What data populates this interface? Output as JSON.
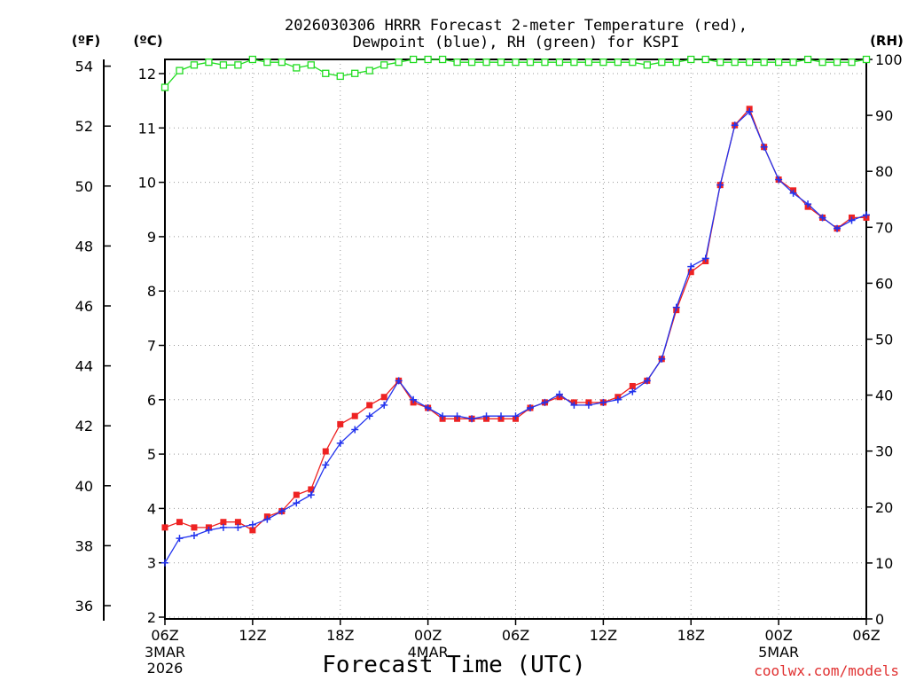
{
  "chart_data": {
    "type": "line",
    "title_line1": "2026030306 HRRR Forecast 2-meter Temperature (red),",
    "title_line2": "Dewpoint (blue), RH (green) for KSPI",
    "xlabel": "Forecast Time (UTC)",
    "watermark": "coolwx.com/models",
    "units": {
      "f": "(ºF)",
      "c": "(ºC)",
      "rh": "(RH)"
    },
    "x_ticks": [
      {
        "h": 0,
        "label": "06Z",
        "sub": [
          "3MAR",
          "2026"
        ]
      },
      {
        "h": 6,
        "label": "12Z",
        "sub": []
      },
      {
        "h": 12,
        "label": "18Z",
        "sub": []
      },
      {
        "h": 18,
        "label": "00Z",
        "sub": [
          "4MAR"
        ]
      },
      {
        "h": 24,
        "label": "06Z",
        "sub": []
      },
      {
        "h": 30,
        "label": "12Z",
        "sub": []
      },
      {
        "h": 36,
        "label": "18Z",
        "sub": []
      },
      {
        "h": 42,
        "label": "00Z",
        "sub": [
          "5MAR"
        ]
      },
      {
        "h": 48,
        "label": "06Z",
        "sub": []
      }
    ],
    "xlim": [
      0,
      48
    ],
    "ylim_c": [
      2,
      12.3
    ],
    "ylim_rh": [
      0,
      100
    ],
    "y_ticks_c": [
      2,
      3,
      4,
      5,
      6,
      7,
      8,
      9,
      10,
      11,
      12
    ],
    "y_ticks_f": [
      36,
      38,
      40,
      42,
      44,
      46,
      48,
      50,
      52,
      54
    ],
    "y_ticks_rh": [
      0,
      10,
      20,
      30,
      40,
      50,
      60,
      70,
      80,
      90,
      100
    ],
    "grid": true,
    "series": [
      {
        "name": "Temperature",
        "color": "#ee2222",
        "marker": "square",
        "values": [
          3.65,
          3.75,
          3.65,
          3.65,
          3.75,
          3.75,
          3.6,
          3.85,
          3.95,
          4.25,
          4.35,
          5.05,
          5.55,
          5.7,
          5.9,
          6.05,
          6.35,
          5.95,
          5.85,
          5.65,
          5.65,
          5.65,
          5.65,
          5.65,
          5.65,
          5.85,
          5.95,
          6.05,
          5.95,
          5.95,
          5.95,
          6.05,
          6.25,
          6.35,
          6.75,
          7.65,
          8.35,
          8.55,
          9.95,
          11.05,
          11.35,
          10.65,
          10.05,
          9.85,
          9.55,
          9.35,
          9.15,
          9.35,
          9.35
        ]
      },
      {
        "name": "Dewpoint",
        "color": "#2233ee",
        "marker": "plus",
        "values": [
          3.0,
          3.45,
          3.5,
          3.6,
          3.65,
          3.65,
          3.7,
          3.8,
          3.95,
          4.1,
          4.25,
          4.8,
          5.2,
          5.45,
          5.7,
          5.9,
          6.35,
          6.0,
          5.85,
          5.7,
          5.7,
          5.65,
          5.7,
          5.7,
          5.7,
          5.85,
          5.95,
          6.1,
          5.9,
          5.9,
          5.95,
          6.0,
          6.15,
          6.35,
          6.75,
          7.7,
          8.45,
          8.6,
          9.95,
          11.05,
          11.3,
          10.65,
          10.05,
          9.8,
          9.6,
          9.35,
          9.15,
          9.3,
          9.4
        ]
      },
      {
        "name": "RH",
        "color": "#22dd22",
        "marker": "open-square",
        "values": [
          95,
          98,
          99,
          99.5,
          99,
          99,
          100,
          99.5,
          99.5,
          98.5,
          99,
          97.5,
          97,
          97.5,
          98,
          99,
          99.5,
          100,
          100,
          100,
          99.5,
          99.5,
          99.5,
          99.5,
          99.5,
          99.5,
          99.5,
          99.5,
          99.5,
          99.5,
          99.5,
          99.5,
          99.5,
          99,
          99.5,
          99.5,
          100,
          100,
          99.5,
          99.5,
          99.5,
          99.5,
          99.5,
          99.5,
          100,
          99.5,
          99.5,
          99.5,
          100
        ]
      }
    ]
  }
}
